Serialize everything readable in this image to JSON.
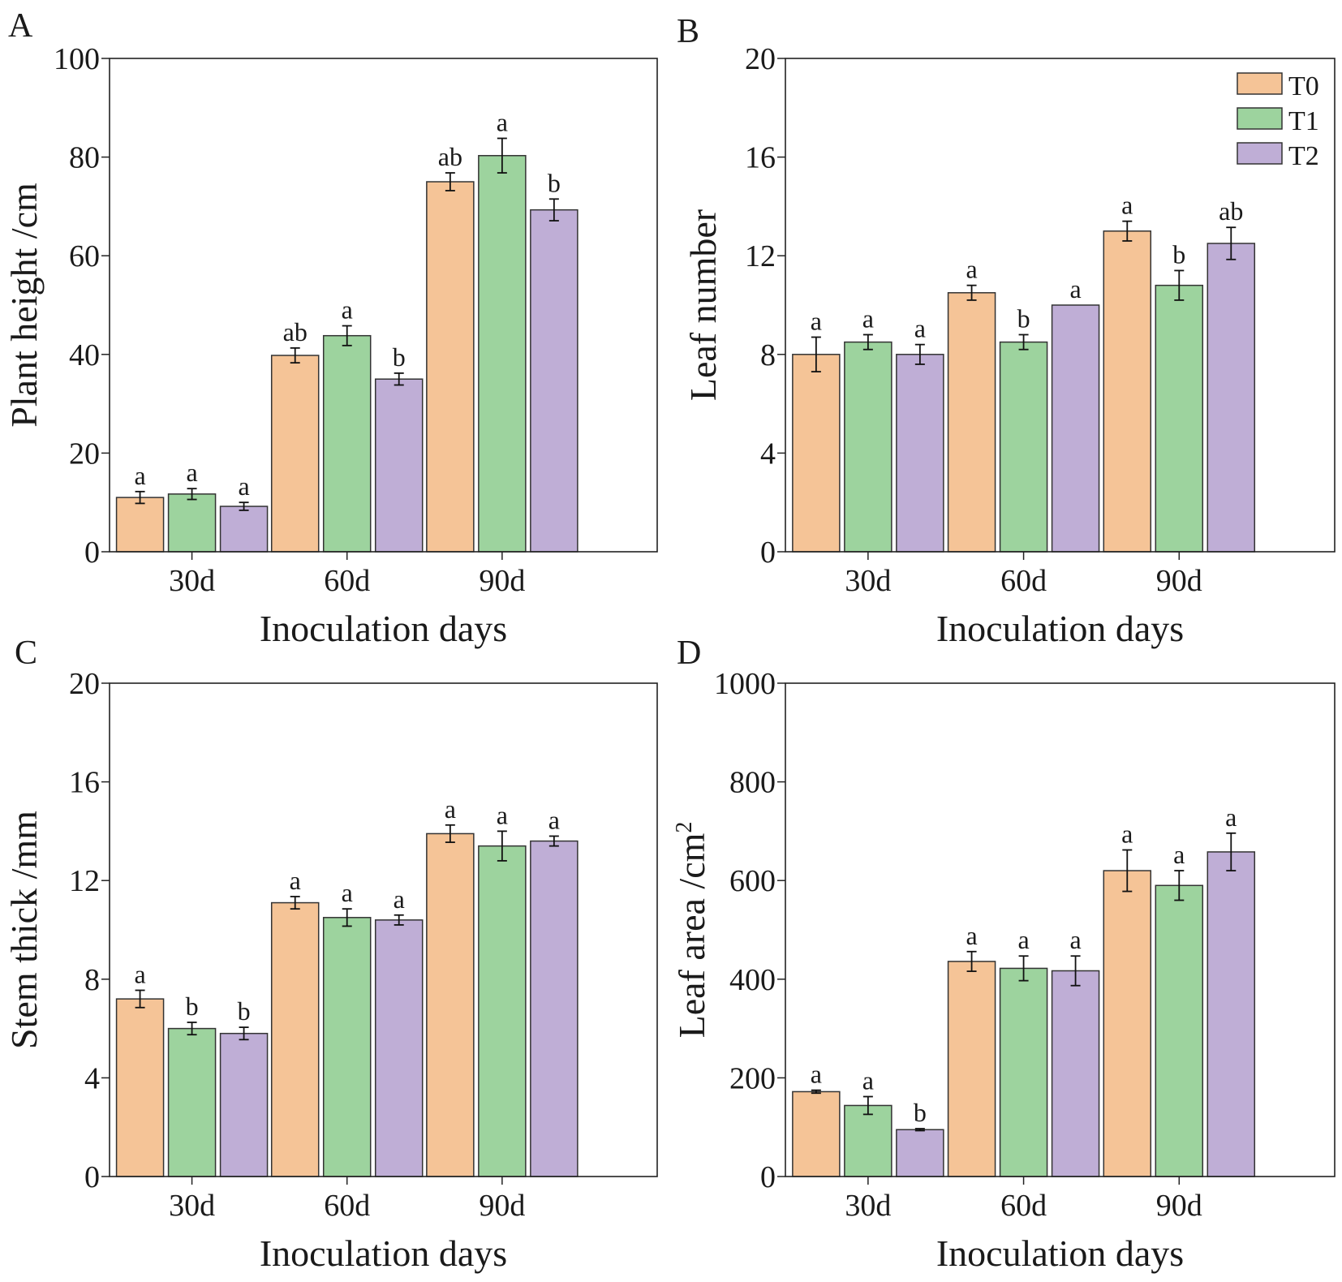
{
  "legend": [
    {
      "name": "T0",
      "color": "#f5c497"
    },
    {
      "name": "T1",
      "color": "#9dd39e"
    },
    {
      "name": "T2",
      "color": "#bfaed6"
    }
  ],
  "chart_data": [
    {
      "panel": "A",
      "type": "bar",
      "title": "",
      "xlabel": "Inoculation days",
      "ylabel": "Plant height /cm",
      "ylabel_sup": "",
      "categories": [
        "30d",
        "60d",
        "90d"
      ],
      "ylim": [
        0,
        100
      ],
      "yticks": [
        0,
        20,
        40,
        60,
        80,
        100
      ],
      "ytick_labels": [
        "0",
        "20",
        "40",
        "60",
        "80",
        "100"
      ],
      "series": [
        {
          "name": "T0",
          "values": [
            11,
            39.8,
            75
          ],
          "errors": [
            1.2,
            1.5,
            1.8
          ],
          "sig": [
            "a",
            "ab",
            "ab"
          ]
        },
        {
          "name": "T1",
          "values": [
            11.7,
            43.8,
            80.3
          ],
          "errors": [
            1.1,
            2.0,
            3.5
          ],
          "sig": [
            "a",
            "a",
            "a"
          ]
        },
        {
          "name": "T2",
          "values": [
            9.2,
            35,
            69.3
          ],
          "errors": [
            0.8,
            1.2,
            2.2
          ],
          "sig": [
            "a",
            "b",
            "b"
          ]
        }
      ]
    },
    {
      "panel": "B",
      "type": "bar",
      "title": "",
      "xlabel": "Inoculation days",
      "ylabel": "Leaf number",
      "ylabel_sup": "",
      "categories": [
        "30d",
        "60d",
        "90d"
      ],
      "ylim": [
        0,
        20
      ],
      "yticks": [
        0,
        4,
        8,
        12,
        16,
        20
      ],
      "ytick_labels": [
        "0",
        "4",
        "8",
        "12",
        "16",
        "20"
      ],
      "legend": "top-right",
      "series": [
        {
          "name": "T0",
          "values": [
            8,
            10.5,
            13
          ],
          "errors": [
            0.7,
            0.3,
            0.4
          ],
          "sig": [
            "a",
            "a",
            "a"
          ]
        },
        {
          "name": "T1",
          "values": [
            8.5,
            8.5,
            10.8
          ],
          "errors": [
            0.3,
            0.3,
            0.6
          ],
          "sig": [
            "a",
            "b",
            "b"
          ]
        },
        {
          "name": "T2",
          "values": [
            8,
            10,
            12.5
          ],
          "errors": [
            0.4,
            0,
            0.65
          ],
          "sig": [
            "a",
            "a",
            "ab"
          ]
        }
      ]
    },
    {
      "panel": "C",
      "type": "bar",
      "title": "",
      "xlabel": "Inoculation days",
      "ylabel": "Stem thick /mm",
      "ylabel_sup": "",
      "categories": [
        "30d",
        "60d",
        "90d"
      ],
      "ylim": [
        0,
        20
      ],
      "yticks": [
        0,
        4,
        8,
        12,
        16,
        20
      ],
      "ytick_labels": [
        "0",
        "4",
        "8",
        "12",
        "16",
        "20"
      ],
      "series": [
        {
          "name": "T0",
          "values": [
            7.2,
            11.1,
            13.9
          ],
          "errors": [
            0.35,
            0.25,
            0.35
          ],
          "sig": [
            "a",
            "a",
            "a"
          ]
        },
        {
          "name": "T1",
          "values": [
            6,
            10.5,
            13.4
          ],
          "errors": [
            0.25,
            0.35,
            0.6
          ],
          "sig": [
            "b",
            "a",
            "a"
          ]
        },
        {
          "name": "T2",
          "values": [
            5.8,
            10.4,
            13.6
          ],
          "errors": [
            0.25,
            0.2,
            0.2
          ],
          "sig": [
            "b",
            "a",
            "a"
          ]
        }
      ]
    },
    {
      "panel": "D",
      "type": "bar",
      "title": "",
      "xlabel": "Inoculation days",
      "ylabel": "Leaf area /cm",
      "ylabel_sup": "2",
      "categories": [
        "30d",
        "60d",
        "90d"
      ],
      "ylim": [
        0,
        1000
      ],
      "yticks": [
        0,
        200,
        400,
        600,
        800,
        1000
      ],
      "ytick_labels": [
        "0",
        "200",
        "400",
        "600",
        "800",
        "1000"
      ],
      "series": [
        {
          "name": "T0",
          "values": [
            172,
            436,
            620
          ],
          "errors": [
            3,
            20,
            42
          ],
          "sig": [
            "a",
            "a",
            "a"
          ]
        },
        {
          "name": "T1",
          "values": [
            144,
            422,
            590
          ],
          "errors": [
            18,
            25,
            30
          ],
          "sig": [
            "a",
            "a",
            "a"
          ]
        },
        {
          "name": "T2",
          "values": [
            95,
            417,
            658
          ],
          "errors": [
            2,
            30,
            38
          ],
          "sig": [
            "b",
            "a",
            "a"
          ]
        }
      ]
    }
  ]
}
